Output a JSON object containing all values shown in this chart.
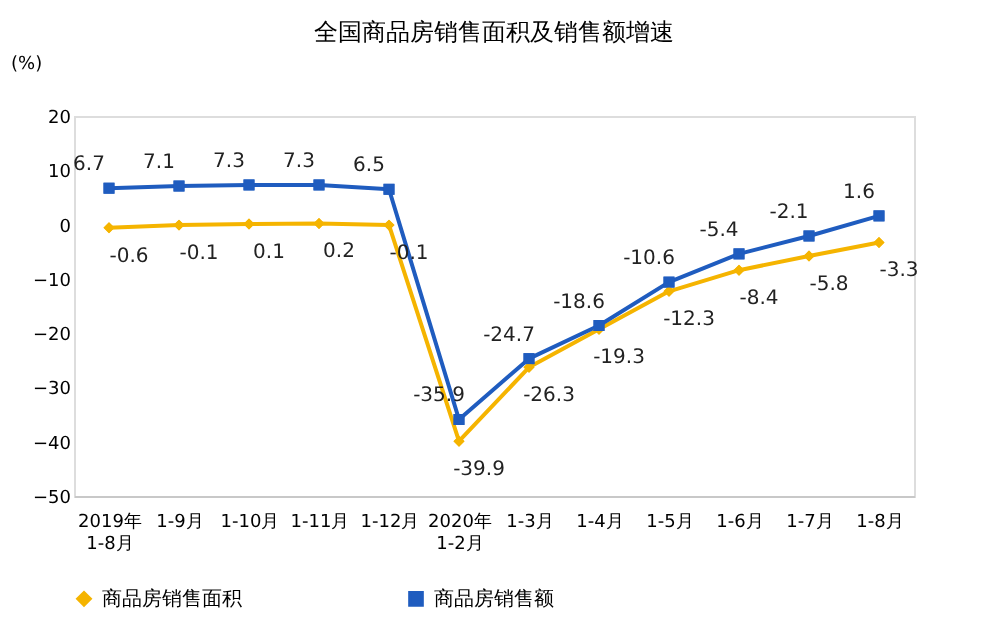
{
  "chart_data": {
    "type": "line",
    "title": "全国商品房销售面积及销售额增速",
    "ylabel": "(%)",
    "categories": [
      "2019年\n1-8月",
      "1-9月",
      "1-10月",
      "1-11月",
      "1-12月",
      "2020年\n1-2月",
      "1-3月",
      "1-4月",
      "1-5月",
      "1-6月",
      "1-7月",
      "1-8月"
    ],
    "series": [
      {
        "name": "商品房销售面积",
        "color": "#f5b400",
        "marker": "diamond",
        "values": [
          -0.6,
          -0.1,
          0.1,
          0.2,
          -0.1,
          -39.9,
          -26.3,
          -19.3,
          -12.3,
          -8.4,
          -5.8,
          -3.3
        ]
      },
      {
        "name": "商品房销售额",
        "color": "#1f5cbf",
        "marker": "square",
        "values": [
          6.7,
          7.1,
          7.3,
          7.3,
          6.5,
          -35.9,
          -24.7,
          -18.6,
          -10.6,
          -5.4,
          -2.1,
          1.6
        ]
      }
    ],
    "ylim": [
      -50,
      20
    ],
    "yticks": [
      -50,
      -40,
      -30,
      -20,
      -10,
      0,
      10,
      20
    ],
    "data_labels": true,
    "grid": false,
    "legend": "bottom",
    "line_style": "solid"
  }
}
